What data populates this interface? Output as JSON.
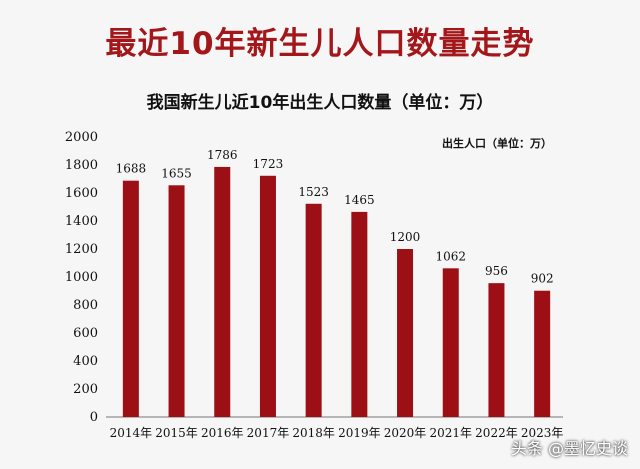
{
  "header": {
    "headline": "最近10年新生儿人口数量走势",
    "chart_title": "我国新生儿近10年出生人口数量（单位：万）",
    "watermark": "头条 @墨忆史谈"
  },
  "colors": {
    "bar": "#9b0f15",
    "headline": "#a3161a"
  },
  "chart_data": {
    "type": "bar",
    "title": "我国新生儿近10年出生人口数量（单位：万）",
    "legend_text": "出生人口（单位：万）",
    "legend_position": "top-right",
    "grid": false,
    "categories": [
      "2014年",
      "2015年",
      "2016年",
      "2017年",
      "2018年",
      "2019年",
      "2020年",
      "2021年",
      "2022年",
      "2023年"
    ],
    "series": [
      {
        "name": "出生人口",
        "values": [
          1688,
          1655,
          1786,
          1723,
          1523,
          1465,
          1200,
          1062,
          956,
          902
        ]
      }
    ],
    "ylim": [
      0,
      2000
    ],
    "yticks": [
      0,
      200,
      400,
      600,
      800,
      1000,
      1200,
      1400,
      1600,
      1800,
      2000
    ]
  }
}
